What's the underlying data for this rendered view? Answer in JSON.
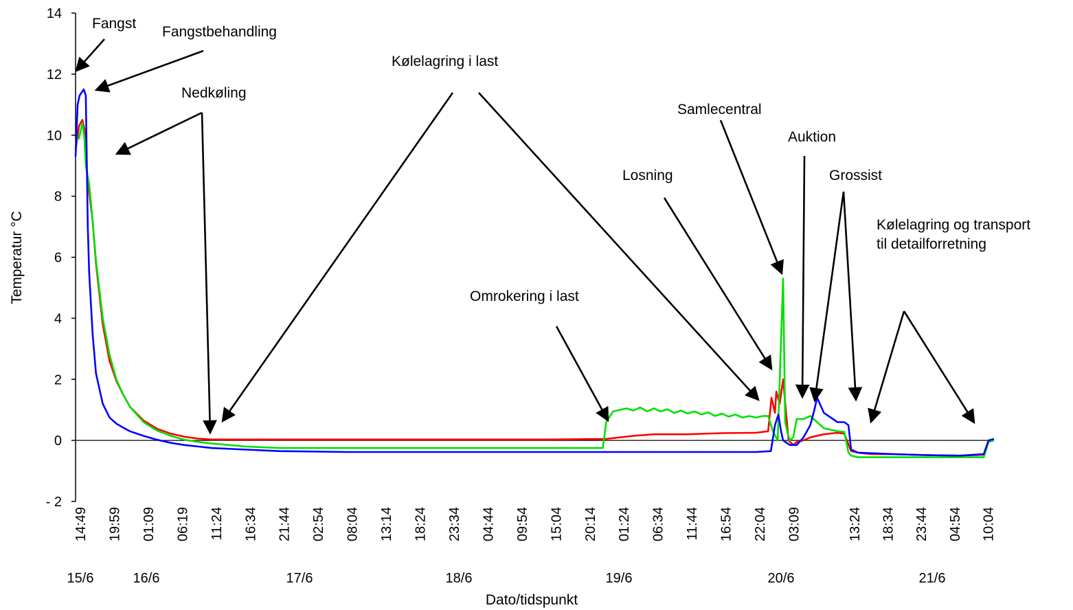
{
  "chart_data": {
    "type": "line",
    "xlabel": "Dato/tidspunkt",
    "ylabel": "Temperatur °C",
    "ylim": [
      -2,
      14
    ],
    "yticks": [
      -2,
      0,
      2,
      4,
      6,
      8,
      10,
      12,
      14
    ],
    "x_time_labels": [
      "14:49",
      "19:59",
      "01:09",
      "06:19",
      "11:24",
      "16:34",
      "21:44",
      "02:54",
      "08:04",
      "13:14",
      "18:24",
      "23:34",
      "04:44",
      "09:54",
      "15:04",
      "20:14",
      "01:24",
      "06:34",
      "11:44",
      "16:54",
      "22:04",
      "03:09",
      "13:24",
      "18:34",
      "23:44",
      "04:54",
      "10:04"
    ],
    "x_date_labels": [
      "15/6",
      "16/6",
      "17/6",
      "18/6",
      "19/6",
      "20/6",
      "21/6"
    ],
    "x_unit": "hours since first logged reading (15/6 14:49)",
    "x_range_hours": [
      0,
      135
    ],
    "zero_line": true,
    "grid": false,
    "series": [
      {
        "color": "#ff0000",
        "x": [
          0,
          0.5,
          1,
          1.3,
          1.5,
          1.8,
          2.5,
          3,
          4,
          5,
          6,
          7,
          8,
          10,
          12,
          14,
          16,
          18,
          20,
          25,
          30,
          40,
          50,
          60,
          70,
          78,
          80,
          82,
          85,
          90,
          95,
          100,
          101.8,
          102.3,
          102.8,
          103,
          103.5,
          104,
          104.8,
          105.5,
          106,
          107,
          108,
          110,
          112,
          113,
          114,
          115,
          117,
          120,
          125,
          130,
          133.5,
          134.2,
          135
        ],
        "values": [
          9.5,
          10.3,
          10.5,
          10.2,
          9.2,
          8.5,
          7.2,
          5.8,
          3.8,
          2.6,
          1.95,
          1.5,
          1.1,
          0.65,
          0.38,
          0.22,
          0.12,
          0.06,
          0.03,
          0.03,
          0.03,
          0.03,
          0.03,
          0.03,
          0.03,
          0.05,
          0.1,
          0.15,
          0.2,
          0.2,
          0.24,
          0.25,
          0.3,
          1.4,
          0.9,
          1.6,
          1.2,
          2.0,
          0.0,
          -0.15,
          -0.05,
          0.0,
          0.1,
          0.2,
          0.25,
          0.22,
          -0.35,
          -0.4,
          -0.45,
          -0.45,
          -0.48,
          -0.5,
          -0.47,
          0.0,
          0.0
        ]
      },
      {
        "color": "#00e000",
        "x": [
          0,
          0.5,
          1,
          1.3,
          1.5,
          2,
          2.5,
          3,
          4,
          5,
          6,
          7,
          8,
          10,
          12,
          14,
          16,
          18,
          20,
          25,
          30,
          40,
          50,
          60,
          70,
          77.5,
          78,
          79,
          80,
          81,
          82,
          83,
          84,
          85,
          86,
          87,
          88,
          89,
          90,
          91,
          92,
          93,
          94,
          95,
          96,
          97,
          98,
          99,
          100,
          101,
          101.8,
          102.5,
          103.2,
          104,
          104.3,
          104.7,
          105,
          105.5,
          106,
          107,
          108,
          110,
          112,
          113,
          113.6,
          114,
          115,
          117,
          120,
          125,
          130,
          133,
          133.5,
          134.2,
          135
        ],
        "values": [
          9.8,
          9.9,
          10.4,
          9.9,
          9.0,
          8.4,
          7.2,
          5.9,
          4.0,
          2.8,
          2.0,
          1.5,
          1.1,
          0.6,
          0.32,
          0.15,
          0.02,
          -0.05,
          -0.1,
          -0.2,
          -0.25,
          -0.25,
          -0.25,
          -0.25,
          -0.25,
          -0.25,
          0.6,
          0.95,
          1.0,
          1.05,
          0.98,
          1.08,
          0.95,
          1.05,
          0.95,
          1.02,
          0.9,
          0.98,
          0.88,
          0.95,
          0.85,
          0.92,
          0.8,
          0.88,
          0.78,
          0.85,
          0.75,
          0.8,
          0.75,
          0.8,
          0.8,
          0.3,
          0.0,
          5.3,
          0.6,
          0.2,
          0.0,
          0.1,
          0.7,
          0.7,
          0.8,
          0.4,
          0.3,
          0.28,
          -0.4,
          -0.5,
          -0.55,
          -0.55,
          -0.55,
          -0.55,
          -0.55,
          -0.55,
          -0.55,
          -0.05,
          0.0
        ]
      },
      {
        "color": "#0000ff",
        "x": [
          0,
          0.3,
          0.6,
          0.9,
          1.2,
          1.5,
          1.8,
          2,
          2.5,
          3,
          4,
          5,
          6,
          7,
          8,
          10,
          12,
          14,
          16,
          18,
          20,
          25,
          30,
          40,
          50,
          60,
          70,
          80,
          90,
          100,
          102.2,
          102.8,
          103.3,
          103.7,
          104,
          105,
          106,
          107,
          108,
          108.6,
          109,
          110,
          112,
          113,
          113.6,
          114,
          115,
          117,
          120,
          125,
          130,
          133.5,
          134.2,
          135
        ],
        "values": [
          9.3,
          11.0,
          11.3,
          11.4,
          11.5,
          11.3,
          7.0,
          5.5,
          3.5,
          2.2,
          1.2,
          0.75,
          0.55,
          0.42,
          0.3,
          0.15,
          0.02,
          -0.08,
          -0.15,
          -0.2,
          -0.25,
          -0.3,
          -0.35,
          -0.38,
          -0.38,
          -0.38,
          -0.38,
          -0.38,
          -0.38,
          -0.38,
          -0.35,
          0.5,
          0.85,
          0.3,
          0.0,
          -0.15,
          -0.15,
          0.1,
          0.5,
          1.0,
          1.4,
          0.9,
          0.6,
          0.6,
          0.5,
          -0.3,
          -0.4,
          -0.42,
          -0.45,
          -0.48,
          -0.5,
          -0.45,
          0.0,
          0.05
        ]
      }
    ],
    "annotations": [
      {
        "text": "Fangst"
      },
      {
        "text": "Fangstbehandling"
      },
      {
        "text": "Nedkøling"
      },
      {
        "text": "Kølelagring  i last"
      },
      {
        "text": "Omrokering  i last"
      },
      {
        "text": "Losning"
      },
      {
        "text": "Samlecentral"
      },
      {
        "text": "Auktion"
      },
      {
        "text": "Grossist"
      },
      {
        "text": "Kølelagring  og transport",
        "text2": "til detailforretning"
      }
    ]
  }
}
